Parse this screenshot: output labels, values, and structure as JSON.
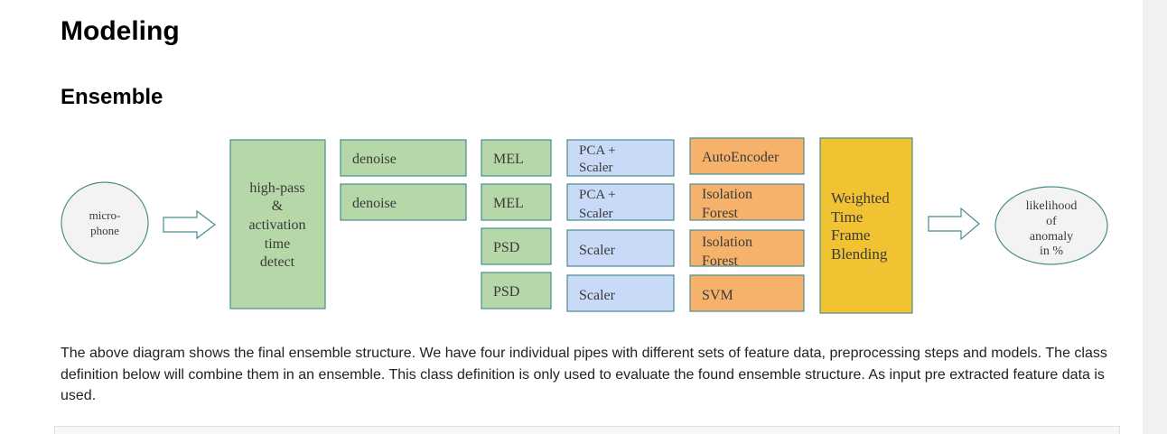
{
  "page": {
    "title": "Modeling",
    "section_title": "Ensemble",
    "description": "The above diagram shows the final ensemble structure. We have four individual pipes with different sets of feature data, preprocessing steps and models. The class definition below will combine them in an ensemble. This class definition is only used to evaluate the found ensemble structure. As input pre extracted feature data is used."
  },
  "diagram": {
    "input_node": [
      "micro-",
      "phone"
    ],
    "filter_node": [
      "high-pass",
      "&",
      "activation",
      "time",
      "detect"
    ],
    "denoise": [
      "denoise",
      "denoise"
    ],
    "features": [
      "MEL",
      "MEL",
      "PSD",
      "PSD"
    ],
    "preprocessing": [
      [
        "PCA +",
        "Scaler"
      ],
      [
        "PCA +",
        "Scaler"
      ],
      [
        "Scaler"
      ],
      [
        "Scaler"
      ]
    ],
    "models": [
      [
        "AutoEncoder"
      ],
      [
        "Isolation",
        "Forest"
      ],
      [
        "Isolation",
        "Forest"
      ],
      [
        "SVM"
      ]
    ],
    "blending_node": [
      "Weighted",
      "Time",
      "Frame",
      "Blending"
    ],
    "output_node": [
      "likelihood",
      "of",
      "anomaly",
      "in %"
    ],
    "colors": {
      "green": "#b6d7a8",
      "blue": "#c9daf8",
      "orange": "#f6b26b",
      "yellow": "#f1c232",
      "stroke": "#4a8c8c",
      "ellipse_fill": "#f3f3f3"
    }
  }
}
